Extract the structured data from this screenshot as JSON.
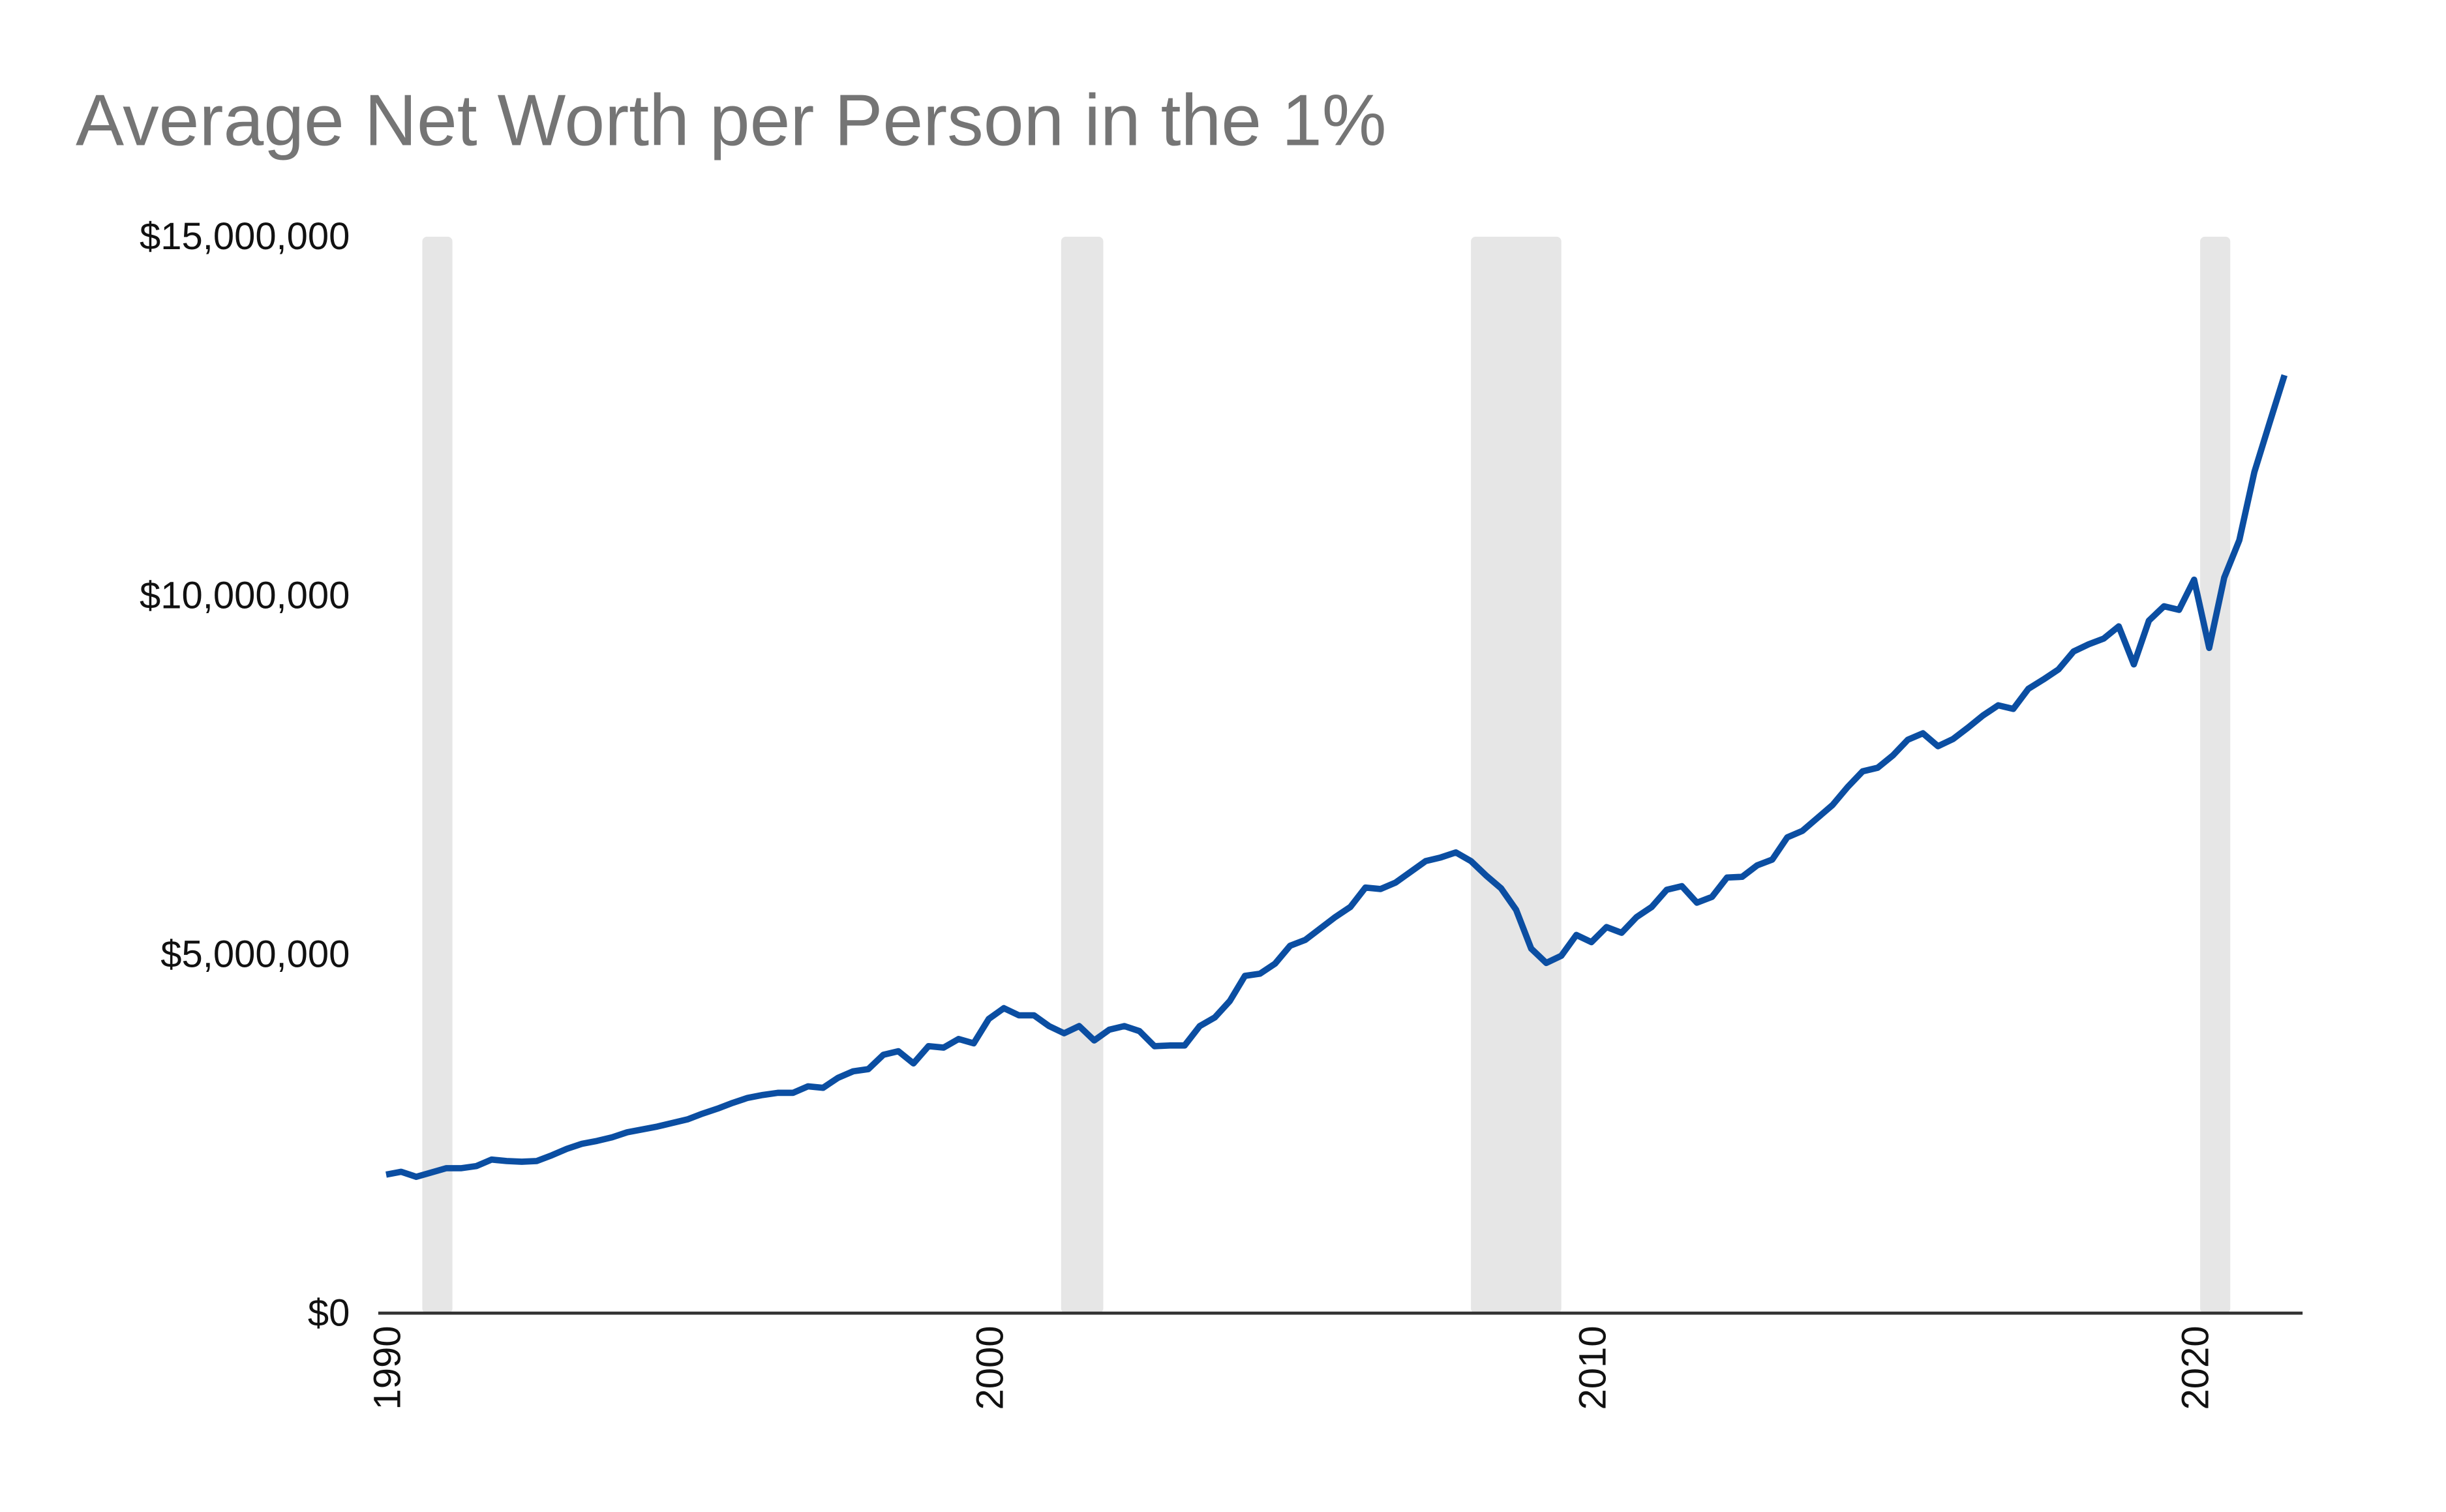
{
  "chart_data": {
    "type": "line",
    "title": "Average Net Worth per Person in the 1%",
    "x": [
      1990,
      1990.25,
      1990.5,
      1990.75,
      1991,
      1991.25,
      1991.5,
      1991.75,
      1992,
      1992.25,
      1992.5,
      1992.75,
      1993,
      1993.25,
      1993.5,
      1993.75,
      1994,
      1994.25,
      1994.5,
      1994.75,
      1995,
      1995.25,
      1995.5,
      1995.75,
      1996,
      1996.25,
      1996.5,
      1996.75,
      1997,
      1997.25,
      1997.5,
      1997.75,
      1998,
      1998.25,
      1998.5,
      1998.75,
      1999,
      1999.25,
      1999.5,
      1999.75,
      2000,
      2000.25,
      2000.5,
      2000.75,
      2001,
      2001.25,
      2001.5,
      2001.75,
      2002,
      2002.25,
      2002.5,
      2002.75,
      2003,
      2003.25,
      2003.5,
      2003.75,
      2004,
      2004.25,
      2004.5,
      2004.75,
      2005,
      2005.25,
      2005.5,
      2005.75,
      2006,
      2006.25,
      2006.5,
      2006.75,
      2007,
      2007.25,
      2007.5,
      2007.75,
      2008,
      2008.25,
      2008.5,
      2008.75,
      2009,
      2009.25,
      2009.5,
      2009.75,
      2010,
      2010.25,
      2010.5,
      2010.75,
      2011,
      2011.25,
      2011.5,
      2011.75,
      2012,
      2012.25,
      2012.5,
      2012.75,
      2013,
      2013.25,
      2013.5,
      2013.75,
      2014,
      2014.25,
      2014.5,
      2014.75,
      2015,
      2015.25,
      2015.5,
      2015.75,
      2016,
      2016.25,
      2016.5,
      2016.75,
      2017,
      2017.25,
      2017.5,
      2017.75,
      2018,
      2018.25,
      2018.5,
      2018.75,
      2019,
      2019.25,
      2019.5,
      2019.75,
      2020,
      2020.25,
      2020.5,
      2020.75,
      2021,
      2021.25,
      2021.5
    ],
    "series": [
      {
        "color": "#0b4ea2",
        "values": [
          1930000,
          1970000,
          1900000,
          1960000,
          2020000,
          2020000,
          2050000,
          2140000,
          2120000,
          2110000,
          2120000,
          2200000,
          2290000,
          2360000,
          2400000,
          2450000,
          2520000,
          2560000,
          2600000,
          2650000,
          2700000,
          2780000,
          2850000,
          2930000,
          3000000,
          3040000,
          3070000,
          3070000,
          3160000,
          3140000,
          3280000,
          3370000,
          3400000,
          3600000,
          3650000,
          3480000,
          3720000,
          3700000,
          3820000,
          3760000,
          4100000,
          4250000,
          4150000,
          4150000,
          4000000,
          3900000,
          4000000,
          3800000,
          3950000,
          4000000,
          3930000,
          3720000,
          3730000,
          3730000,
          4000000,
          4120000,
          4350000,
          4700000,
          4730000,
          4870000,
          5120000,
          5200000,
          5360000,
          5520000,
          5660000,
          5930000,
          5910000,
          6000000,
          6150000,
          6300000,
          6350000,
          6420000,
          6300000,
          6100000,
          5920000,
          5620000,
          5080000,
          4880000,
          4980000,
          5270000,
          5170000,
          5380000,
          5300000,
          5520000,
          5660000,
          5900000,
          5950000,
          5720000,
          5800000,
          6070000,
          6080000,
          6240000,
          6320000,
          6630000,
          6720000,
          6900000,
          7080000,
          7330000,
          7550000,
          7600000,
          7770000,
          7990000,
          8080000,
          7900000,
          8000000,
          8160000,
          8330000,
          8470000,
          8420000,
          8700000,
          8830000,
          8970000,
          9220000,
          9320000,
          9400000,
          9570000,
          9040000,
          9650000,
          9850000,
          9800000,
          10220000,
          9270000,
          10250000,
          10770000,
          11720000,
          12400000,
          13070000
        ]
      }
    ],
    "shaded_spans": [
      [
        1990.6,
        1991.1
      ],
      [
        2001.2,
        2001.9
      ],
      [
        2008.0,
        2009.5
      ],
      [
        2020.1,
        2020.6
      ]
    ],
    "shade_color": "#e6e6e6",
    "xlim": [
      1990,
      2021.8
    ],
    "xticks": [
      1990,
      2000,
      2010,
      2020
    ],
    "ylim": [
      0,
      15000000
    ],
    "yticks": [
      {
        "value": 0,
        "label": "$0"
      },
      {
        "value": 5000000,
        "label": "$5,000,000"
      },
      {
        "value": 10000000,
        "label": "$10,000,000"
      },
      {
        "value": 15000000,
        "label": "$15,000,000"
      }
    ],
    "grid": false
  }
}
